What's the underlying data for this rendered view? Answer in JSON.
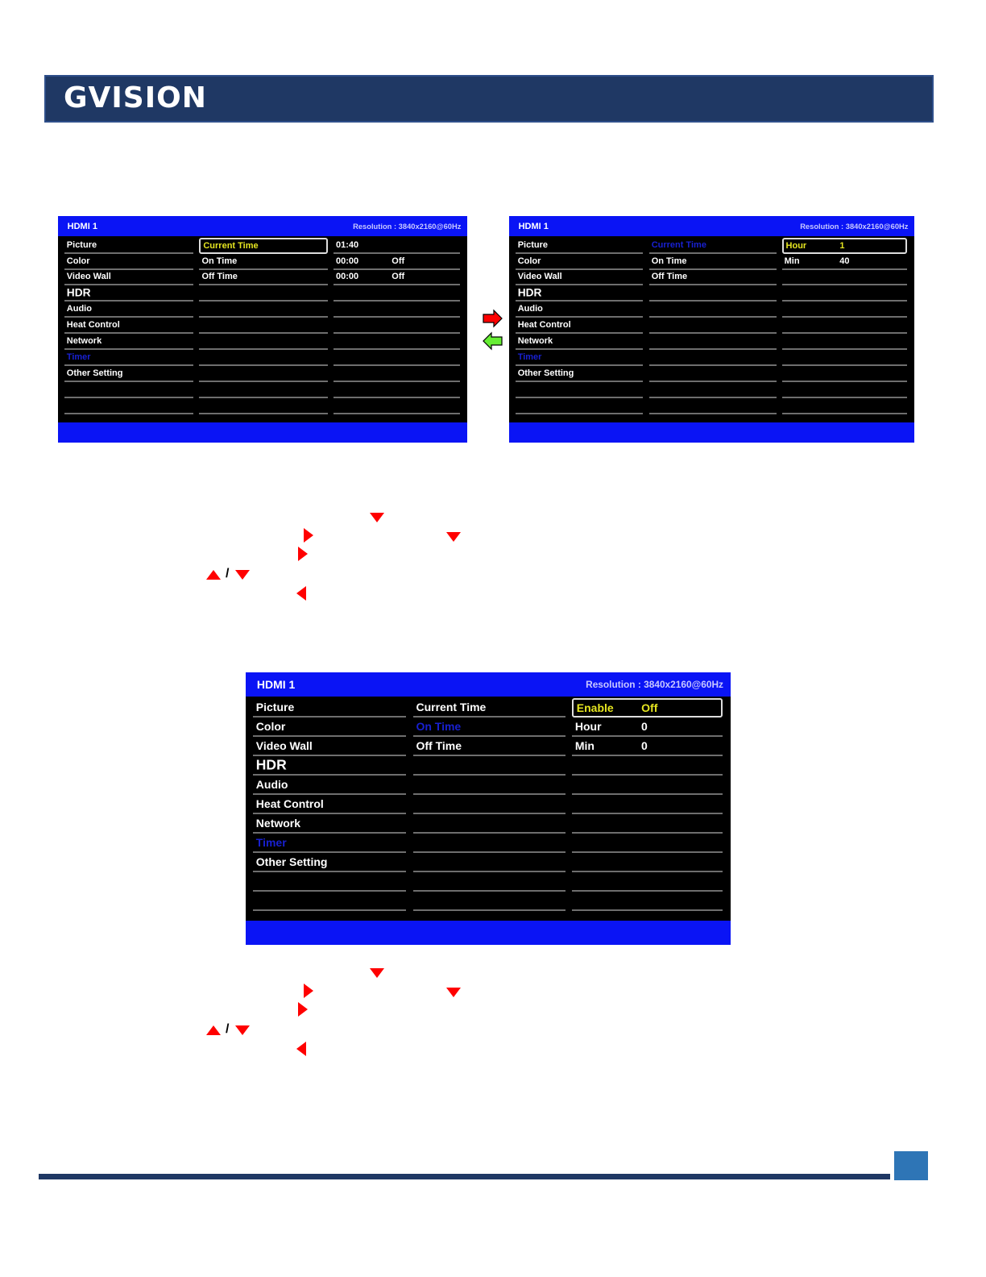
{
  "header": {
    "logo_text": "GVISION",
    "brand_color": "#1f3864"
  },
  "osd_screens": [
    {
      "source": "HDMI 1",
      "resolution": "Resolution : 3840x2160@60Hz",
      "menu": [
        "Picture",
        "Color",
        "Video Wall",
        "HDR",
        "Audio",
        "Heat Control",
        "Network",
        "Timer",
        "Other Setting",
        "",
        ""
      ],
      "menu_active": 7,
      "sub": [
        "Current Time",
        "On Time",
        "Off Time",
        "",
        "",
        "",
        "",
        "",
        "",
        "",
        ""
      ],
      "sub_selected": 0,
      "sub_active": -1,
      "values": [
        [
          "01:40",
          ""
        ],
        [
          "00:00",
          "Off"
        ],
        [
          "00:00",
          "Off"
        ],
        [
          "",
          ""
        ],
        [
          "",
          ""
        ],
        [
          "",
          ""
        ],
        [
          "",
          ""
        ],
        [
          "",
          ""
        ],
        [
          "",
          ""
        ],
        [
          "",
          ""
        ],
        [
          "",
          ""
        ]
      ],
      "value_selected": -1
    },
    {
      "source": "HDMI 1",
      "resolution": "Resolution : 3840x2160@60Hz",
      "menu": [
        "Picture",
        "Color",
        "Video Wall",
        "HDR",
        "Audio",
        "Heat Control",
        "Network",
        "Timer",
        "Other Setting",
        "",
        ""
      ],
      "menu_active": 7,
      "sub": [
        "Current Time",
        "On Time",
        "Off Time",
        "",
        "",
        "",
        "",
        "",
        "",
        "",
        ""
      ],
      "sub_selected": -1,
      "sub_active": 0,
      "values": [
        [
          "Hour",
          "1"
        ],
        [
          "Min",
          "40"
        ],
        [
          "",
          ""
        ],
        [
          "",
          ""
        ],
        [
          "",
          ""
        ],
        [
          "",
          ""
        ],
        [
          "",
          ""
        ],
        [
          "",
          ""
        ],
        [
          "",
          ""
        ],
        [
          "",
          ""
        ],
        [
          "",
          ""
        ]
      ],
      "value_selected": 0
    },
    {
      "source": "HDMI 1",
      "resolution": "Resolution : 3840x2160@60Hz",
      "menu": [
        "Picture",
        "Color",
        "Video Wall",
        "HDR",
        "Audio",
        "Heat Control",
        "Network",
        "Timer",
        "Other Setting",
        "",
        ""
      ],
      "menu_active": 7,
      "sub": [
        "Current Time",
        "On Time",
        "Off Time",
        "",
        "",
        "",
        "",
        "",
        "",
        "",
        ""
      ],
      "sub_selected": -1,
      "sub_active": 1,
      "values": [
        [
          "Enable",
          "Off"
        ],
        [
          "Hour",
          "0"
        ],
        [
          "Min",
          "0"
        ],
        [
          "",
          ""
        ],
        [
          "",
          ""
        ],
        [
          "",
          ""
        ],
        [
          "",
          ""
        ],
        [
          "",
          ""
        ],
        [
          "",
          ""
        ],
        [
          "",
          ""
        ],
        [
          "",
          ""
        ]
      ],
      "value_selected": 0
    }
  ],
  "instructions": {
    "separator": "/"
  },
  "colors": {
    "osd_blue": "#0a14f5",
    "highlight_yellow": "#e6e620",
    "arrow_red": "#ff0000",
    "arrow_green": "#66ee33"
  }
}
